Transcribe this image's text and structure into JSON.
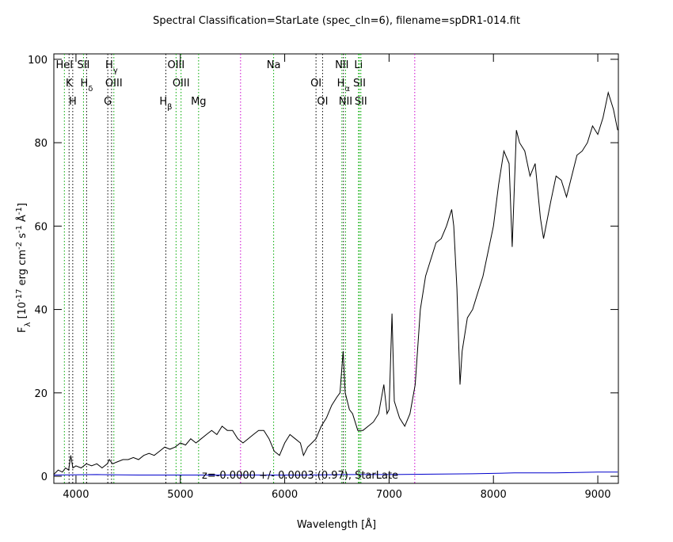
{
  "chart_data": {
    "type": "line",
    "title": "Spectral Classification=StarLate (spec_cln=6), filename=spDR1-014.fit",
    "xlabel": "Wavelength [Å]",
    "ylabel_parts": [
      {
        "text": "F"
      },
      {
        "text": "λ",
        "shift": "sub"
      },
      {
        "text": " [10"
      },
      {
        "text": "-17",
        "shift": "sup"
      },
      {
        "text": " erg cm"
      },
      {
        "text": "-2",
        "shift": "sup"
      },
      {
        "text": " s"
      },
      {
        "text": "-1",
        "shift": "sup"
      },
      {
        "text": " Å"
      },
      {
        "text": "-1",
        "shift": "sup"
      },
      {
        "text": "]"
      }
    ],
    "annotation": "z=-0.0000 +/- 0.0003 (0.97), StarLate",
    "xlim": [
      3788,
      9197
    ],
    "ylim": [
      -1.7,
      101.3
    ],
    "xticks": [
      4000,
      5000,
      6000,
      7000,
      8000,
      9000
    ],
    "yticks": [
      0,
      20,
      40,
      60,
      80,
      100
    ],
    "series": [
      {
        "name": "flux",
        "color": "#000000",
        "x": [
          3790,
          3830,
          3870,
          3900,
          3930,
          3950,
          3970,
          4000,
          4050,
          4100,
          4150,
          4200,
          4250,
          4300,
          4320,
          4350,
          4400,
          4450,
          4500,
          4550,
          4600,
          4650,
          4700,
          4750,
          4800,
          4850,
          4900,
          4950,
          5000,
          5050,
          5100,
          5150,
          5200,
          5250,
          5300,
          5350,
          5400,
          5450,
          5500,
          5550,
          5600,
          5650,
          5700,
          5750,
          5800,
          5850,
          5900,
          5950,
          6000,
          6050,
          6100,
          6150,
          6180,
          6220,
          6260,
          6300,
          6350,
          6400,
          6450,
          6500,
          6530,
          6560,
          6580,
          6620,
          6650,
          6700,
          6750,
          6800,
          6850,
          6900,
          6950,
          6980,
          7000,
          7028,
          7050,
          7100,
          7150,
          7200,
          7250,
          7300,
          7350,
          7400,
          7450,
          7500,
          7550,
          7600,
          7620,
          7650,
          7680,
          7700,
          7750,
          7800,
          7850,
          7900,
          7950,
          8000,
          8050,
          8100,
          8150,
          8180,
          8220,
          8250,
          8300,
          8350,
          8400,
          8450,
          8480,
          8550,
          8600,
          8650,
          8700,
          8750,
          8800,
          8850,
          8900,
          8950,
          9000,
          9050,
          9100,
          9150,
          9190
        ],
        "values": [
          0.5,
          1.5,
          1,
          2,
          1.5,
          5,
          2,
          2.5,
          2,
          3,
          2.5,
          3,
          2,
          3,
          4,
          3,
          3.5,
          4,
          4,
          4.5,
          4,
          5,
          5.5,
          5,
          6,
          7,
          6.5,
          7,
          8,
          7.5,
          9,
          8,
          9,
          10,
          11,
          10,
          12,
          11,
          11,
          9,
          8,
          9,
          10,
          11,
          11,
          9,
          6,
          5,
          8,
          10,
          9,
          8,
          5,
          7,
          8,
          9,
          12,
          14,
          17,
          19,
          20,
          30,
          20,
          16,
          15,
          11,
          11,
          12,
          13,
          15,
          22,
          15,
          16,
          39,
          18,
          14,
          12,
          15,
          22,
          40,
          48,
          52,
          56,
          57,
          60,
          64,
          60,
          45,
          22,
          30,
          38,
          40,
          44,
          48,
          54,
          60,
          70,
          78,
          75,
          55,
          83,
          80,
          78,
          72,
          75,
          62,
          57,
          66,
          72,
          71,
          67,
          72,
          77,
          78,
          80,
          84,
          82,
          86,
          92,
          88,
          83
        ]
      },
      {
        "name": "error",
        "color": "#0000cc",
        "x": [
          3790,
          4200,
          4600,
          5000,
          5400,
          5800,
          6200,
          6600,
          7000,
          7400,
          7800,
          8200,
          8600,
          9000,
          9190
        ],
        "values": [
          0.3,
          0.4,
          0.3,
          0.3,
          0.3,
          0.3,
          0.3,
          0.4,
          0.4,
          0.5,
          0.6,
          0.8,
          0.8,
          1,
          1
        ]
      }
    ],
    "lines": [
      {
        "label": "HeI",
        "x": 3889,
        "color": "#00aa00"
      },
      {
        "label": "K",
        "x": 3934,
        "color": "#000000"
      },
      {
        "label": "H",
        "x": 3969,
        "color": "#000000"
      },
      {
        "label": "SII",
        "x": 4072,
        "color": "#00aa00"
      },
      {
        "label": "H",
        "sub": "δ",
        "x": 4102,
        "color": "#000000"
      },
      {
        "label": "G",
        "x": 4305,
        "color": "#000000"
      },
      {
        "label": "H",
        "sub": "γ",
        "x": 4341,
        "color": "#000000"
      },
      {
        "label": "OIII",
        "x": 4363,
        "color": "#00aa00"
      },
      {
        "label": "H",
        "sub": "β",
        "x": 4861,
        "color": "#000000"
      },
      {
        "label": "OIII",
        "x": 4959,
        "color": "#00aa00"
      },
      {
        "label": "OIII",
        "x": 5007,
        "color": "#00aa00"
      },
      {
        "label": "Mg",
        "x": 5175,
        "color": "#00aa00"
      },
      {
        "x": 5577,
        "color": "#cc00cc"
      },
      {
        "label": "Na",
        "x": 5894,
        "color": "#00aa00"
      },
      {
        "label": "OI",
        "x": 6300,
        "color": "#000000"
      },
      {
        "label": "OI",
        "x": 6363,
        "color": "#000000"
      },
      {
        "label": "NII",
        "x": 6548,
        "color": "#00aa00"
      },
      {
        "label": "H",
        "sub": "α",
        "x": 6563,
        "color": "#000000"
      },
      {
        "label": "NII",
        "x": 6583,
        "color": "#00aa00"
      },
      {
        "label": "Li",
        "x": 6707,
        "color": "#00aa00"
      },
      {
        "label": "SII",
        "x": 6716,
        "color": "#00aa00"
      },
      {
        "label": "SII",
        "x": 6730,
        "color": "#00aa00"
      },
      {
        "x": 7246,
        "color": "#cc00cc"
      }
    ]
  }
}
